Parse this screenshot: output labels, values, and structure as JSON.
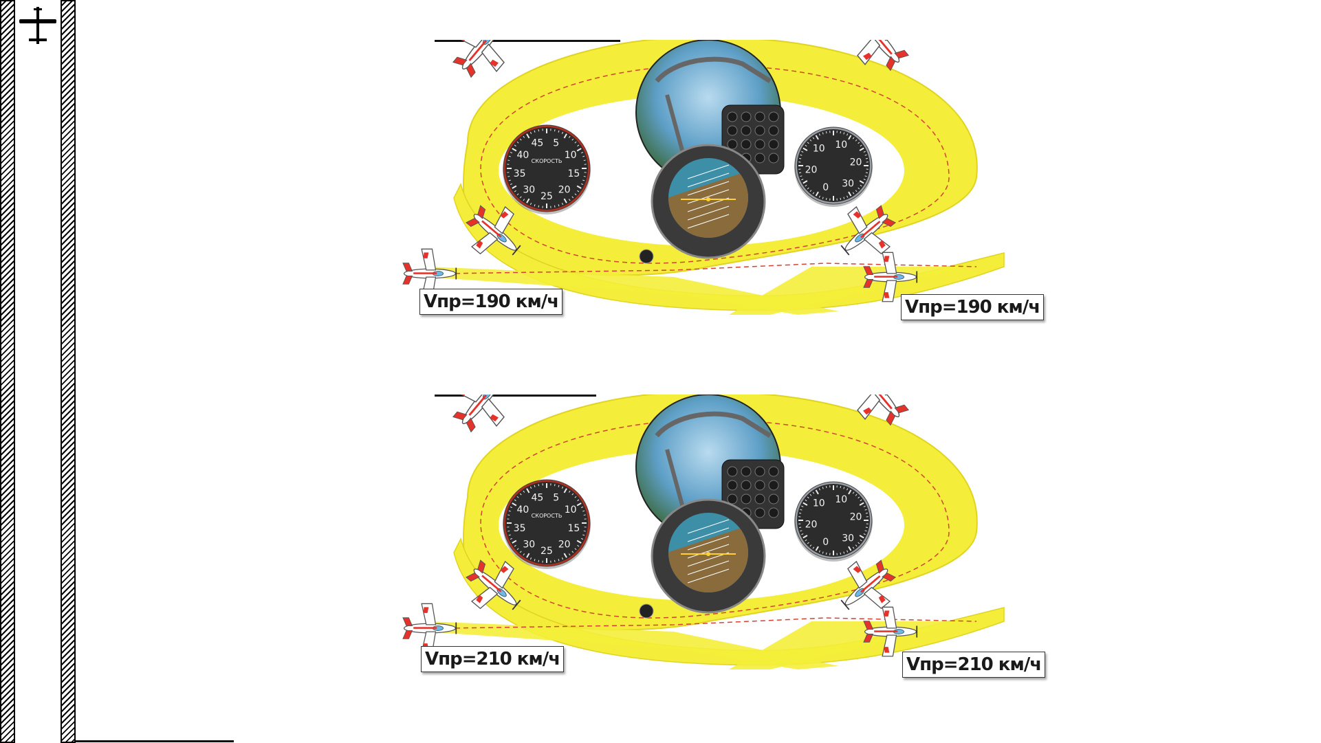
{
  "diagrams": [
    {
      "speed_left": "Vпр=190 км/ч",
      "speed_right": "Vпр=190 км/ч",
      "asi_title": "СКОРОСТЬ",
      "asi_marks": [
        "5",
        "10",
        "15",
        "20",
        "25",
        "30",
        "35",
        "40",
        "45"
      ],
      "vsi_marks": [
        "10",
        "20",
        "30",
        "0",
        "20",
        "10"
      ]
    },
    {
      "speed_left": "Vпр=210 км/ч",
      "speed_right": "Vпр=210 км/ч",
      "asi_title": "СКОРОСТЬ",
      "asi_marks": [
        "5",
        "10",
        "15",
        "20",
        "25",
        "30",
        "35",
        "40",
        "45"
      ],
      "vsi_marks": [
        "10",
        "20",
        "30",
        "0",
        "20",
        "10"
      ]
    }
  ],
  "colors": {
    "ribbon": "#f4ee3a",
    "ribbon_edge": "#e0d420",
    "trajectory": "#d2432f",
    "plane_body": "#ffffff",
    "plane_accent": "#e5322a",
    "instrument_face": "#2c2c2c",
    "horizon_sky": "#3d8fa8",
    "horizon_ground": "#8a6b3b"
  },
  "icons": [
    "airplane-icon",
    "yak-plane-icon"
  ]
}
